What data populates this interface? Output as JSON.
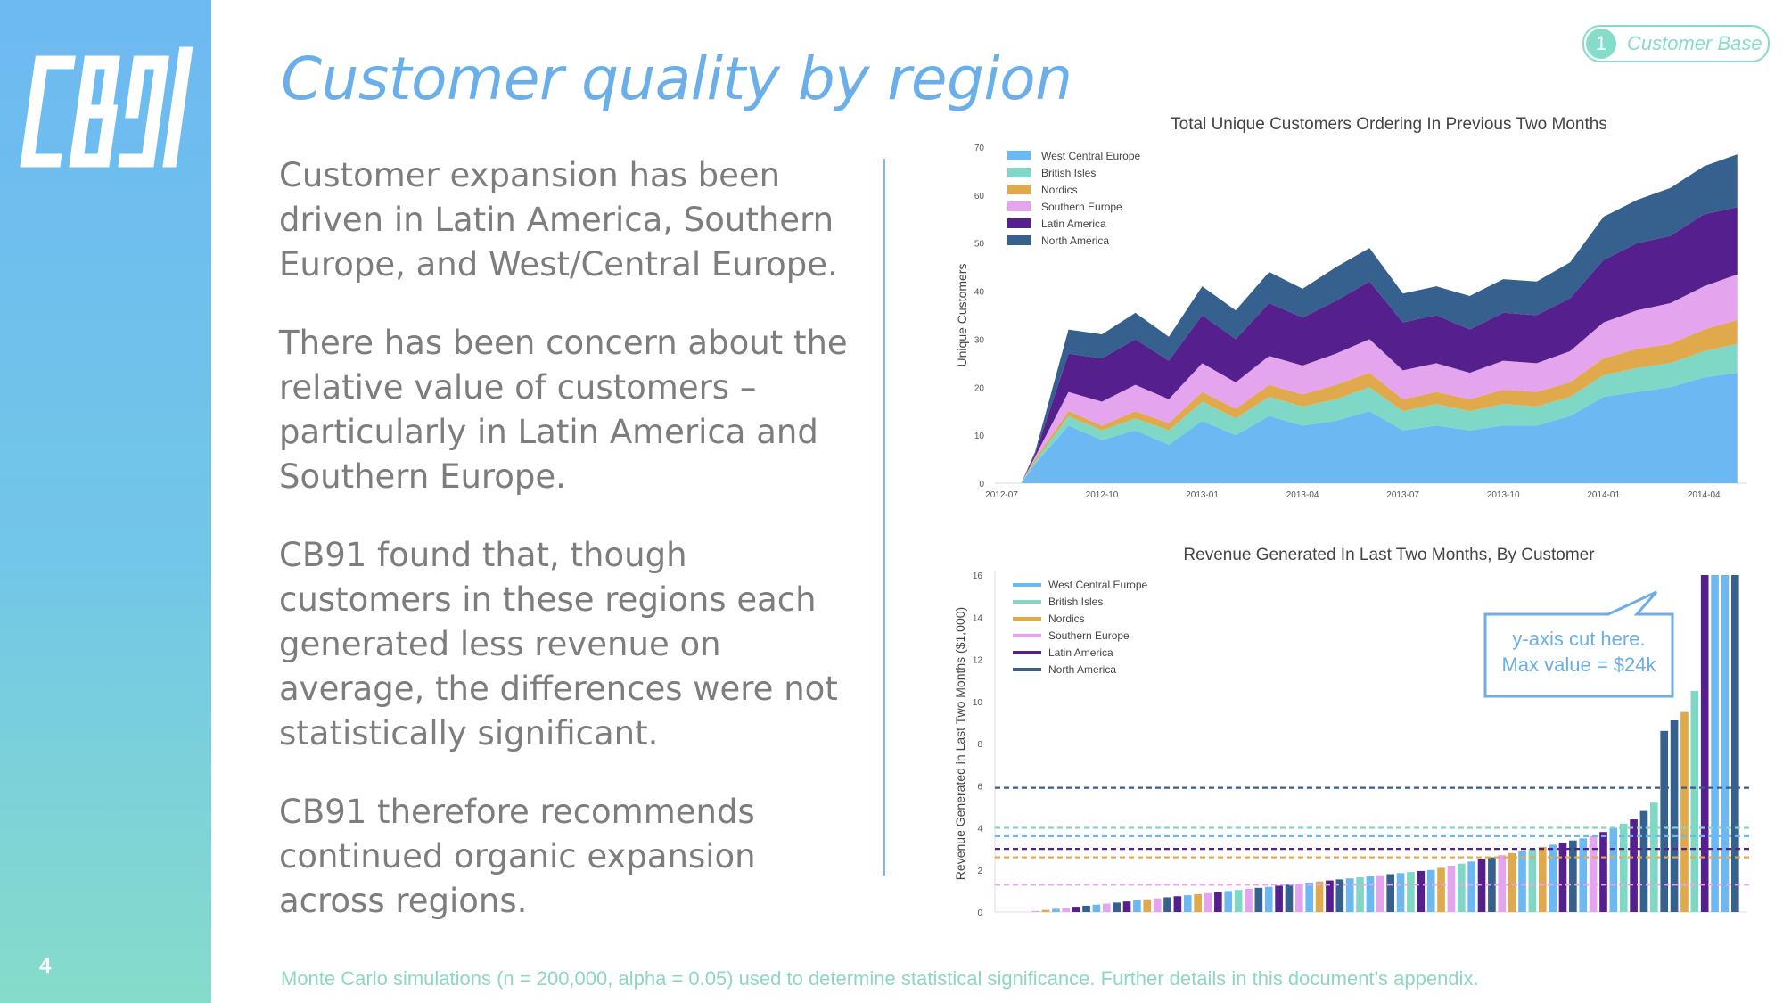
{
  "slide": {
    "logo_text": "CB91",
    "page_number": "4",
    "title": "Customer quality by region",
    "badge": {
      "number": "1",
      "label": "Customer Base"
    },
    "paragraphs": [
      "Customer expansion has been driven in Latin America, Southern Europe, and West/Central Europe.",
      "There has been concern about the relative value of customers – particularly in Latin America and Southern Europe.",
      "CB91 found that, though customers in these regions each generated less revenue on average, the differences were not statistically significant.",
      "CB91 therefore recommends continued organic expansion across regions."
    ],
    "footnote": "Monte Carlo simulations (n = 200,000, alpha = 0.05) used to determine statistical significance. Further details in this document’s appendix."
  },
  "colors": {
    "West Central Europe": "#6cb8f2",
    "British Isles": "#7fd8c6",
    "Nordics": "#e0aa4c",
    "Southern Europe": "#e4a4ee",
    "Latin America": "#55208e",
    "North America": "#36618e"
  },
  "chart_data": [
    {
      "type": "area",
      "stacked": true,
      "title": "Total Unique Customers Ordering In Previous Two Months",
      "ylabel": "Unique Customers",
      "xlabel": "",
      "ylim": [
        0,
        70
      ],
      "yticks": [
        0,
        10,
        20,
        30,
        40,
        50,
        60,
        70
      ],
      "xticks": [
        "2012-07",
        "2012-10",
        "2013-01",
        "2013-04",
        "2013-07",
        "2013-10",
        "2014-01",
        "2014-04"
      ],
      "xrange": [
        "2012-07",
        "2014-05"
      ],
      "legend": "top-left",
      "x": [
        "2012-08",
        "2012-09",
        "2012-10",
        "2012-11",
        "2012-12",
        "2013-01",
        "2013-02",
        "2013-03",
        "2013-04",
        "2013-05",
        "2013-06",
        "2013-07",
        "2013-08",
        "2013-09",
        "2013-10",
        "2013-11",
        "2013-12",
        "2014-01",
        "2014-02",
        "2014-03",
        "2014-04",
        "2014-05"
      ],
      "series": [
        {
          "name": "West Central Europe",
          "values": [
            4,
            12,
            9,
            11,
            8,
            13,
            10,
            14,
            12,
            13,
            15,
            11,
            12,
            11,
            12,
            12,
            14,
            18,
            19,
            20,
            22,
            23
          ]
        },
        {
          "name": "British Isles",
          "values": [
            0.5,
            2,
            2,
            2.5,
            3,
            4,
            3.5,
            4,
            4,
            4.5,
            5,
            4,
            4.5,
            4,
            4.5,
            4,
            4,
            4.5,
            5,
            5,
            5.5,
            6
          ]
        },
        {
          "name": "Nordics",
          "values": [
            0.5,
            1,
            1,
            1.5,
            1.5,
            2,
            2,
            2.5,
            2.5,
            3,
            3,
            2.5,
            2.5,
            2.5,
            3,
            3,
            3,
            3.5,
            4,
            4,
            4.5,
            5
          ]
        },
        {
          "name": "Southern Europe",
          "values": [
            0.5,
            4,
            5,
            5.5,
            5,
            6,
            5.5,
            6,
            6,
            6.5,
            7,
            6,
            6,
            5.5,
            6,
            6,
            6.5,
            7.5,
            8,
            8.5,
            9,
            9.5
          ]
        },
        {
          "name": "Latin America",
          "values": [
            0.5,
            8,
            9,
            9.5,
            8,
            10,
            9,
            11,
            10,
            11,
            12,
            10,
            10,
            9,
            10,
            10,
            11,
            13,
            14,
            14,
            15,
            14
          ]
        },
        {
          "name": "North America",
          "values": [
            0.5,
            5,
            5,
            5.5,
            5,
            6,
            6,
            6.5,
            6,
            7,
            7,
            6,
            6,
            7,
            7,
            7,
            7.5,
            9,
            9,
            10,
            10,
            11
          ]
        }
      ]
    },
    {
      "type": "bar",
      "title": "Revenue Generated In Last Two Months, By Customer",
      "ylabel": "Revenue Generated in Last Two Months ($1,000)",
      "xlabel": "",
      "ylim": [
        0,
        16
      ],
      "yticks": [
        0,
        2,
        4,
        6,
        8,
        10,
        12,
        14,
        16
      ],
      "legend": "top-left",
      "annotation": {
        "lines": [
          "y-axis cut here.",
          "Max value = $24k"
        ]
      },
      "series_names": [
        "West Central Europe",
        "British Isles",
        "Nordics",
        "Southern Europe",
        "Latin America",
        "North America"
      ],
      "bars": {
        "region": [
          3,
          2,
          0,
          3,
          4,
          5,
          0,
          3,
          5,
          4,
          0,
          2,
          3,
          5,
          4,
          0,
          2,
          3,
          4,
          0,
          1,
          3,
          5,
          0,
          4,
          5,
          3,
          0,
          2,
          4,
          5,
          0,
          1,
          0,
          3,
          5,
          0,
          1,
          4,
          0,
          2,
          3,
          1,
          0,
          4,
          5,
          3,
          2,
          0,
          1,
          2,
          0,
          4,
          5,
          0,
          3,
          4,
          0,
          1,
          4,
          5,
          1,
          5,
          5,
          2,
          1,
          4,
          0,
          0,
          5
        ],
        "values": [
          0.05,
          0.1,
          0.15,
          0.2,
          0.25,
          0.3,
          0.35,
          0.4,
          0.45,
          0.5,
          0.55,
          0.6,
          0.65,
          0.7,
          0.75,
          0.8,
          0.85,
          0.9,
          0.95,
          1.0,
          1.05,
          1.1,
          1.15,
          1.2,
          1.25,
          1.3,
          1.35,
          1.4,
          1.45,
          1.5,
          1.55,
          1.6,
          1.65,
          1.7,
          1.75,
          1.8,
          1.85,
          1.9,
          1.95,
          2.0,
          2.1,
          2.2,
          2.3,
          2.4,
          2.5,
          2.6,
          2.7,
          2.8,
          2.9,
          3.0,
          3.1,
          3.2,
          3.3,
          3.4,
          3.5,
          3.6,
          3.8,
          4.0,
          4.2,
          4.4,
          4.8,
          5.2,
          8.6,
          9.1,
          9.5,
          10.5,
          16,
          16,
          16,
          16
        ]
      },
      "mean_lines": [
        {
          "name": "North America",
          "value": 5.9
        },
        {
          "name": "British Isles",
          "value": 4.0
        },
        {
          "name": "West Central Europe",
          "value": 3.6
        },
        {
          "name": "Latin America",
          "value": 3.0
        },
        {
          "name": "Nordics",
          "value": 2.6
        },
        {
          "name": "Southern Europe",
          "value": 1.3
        }
      ]
    }
  ]
}
